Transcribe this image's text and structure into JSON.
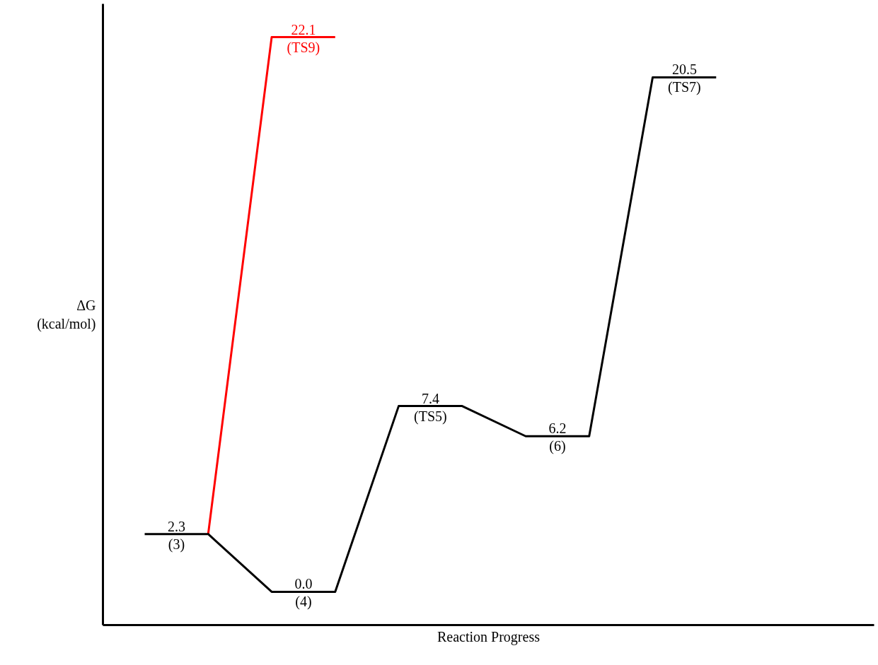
{
  "chart_data": {
    "type": "line",
    "categories": [
      null,
      null,
      null,
      null,
      null,
      null,
      null,
      null,
      null,
      null
    ],
    "series": [
      {
        "color": "#000000",
        "values": [
          2.3,
          2.3,
          0.0,
          0.0,
          7.4,
          7.4,
          6.2,
          6.2,
          20.5,
          20.5
        ],
        "value_labels": [
          "2.3",
          null,
          "0.0",
          null,
          "7.4",
          null,
          "6.2",
          null,
          "20.5",
          null
        ]
      },
      {
        "color": "#ff0000",
        "values": [
          null,
          2.3,
          22.1,
          22.1,
          null,
          null,
          null,
          null,
          null,
          null
        ],
        "value_labels": [
          null,
          null,
          "22.1",
          null,
          null,
          null,
          null,
          null,
          null,
          null
        ]
      }
    ],
    "annotations": [
      {
        "text": "(3)",
        "y": 2.3
      },
      {
        "text": "(4)",
        "y": 0.0
      },
      {
        "text": "(TS5)",
        "y": 7.4
      },
      {
        "text": "(6)",
        "y": 6.2
      },
      {
        "text": "(TS7)",
        "y": 20.5
      },
      {
        "text": "(TS9)",
        "y": 22.1
      }
    ],
    "xlabel": "Reaction Progress",
    "ylabel": "ΔG\n(kcal/mol)",
    "marker": "none",
    "line_style": "solid"
  }
}
